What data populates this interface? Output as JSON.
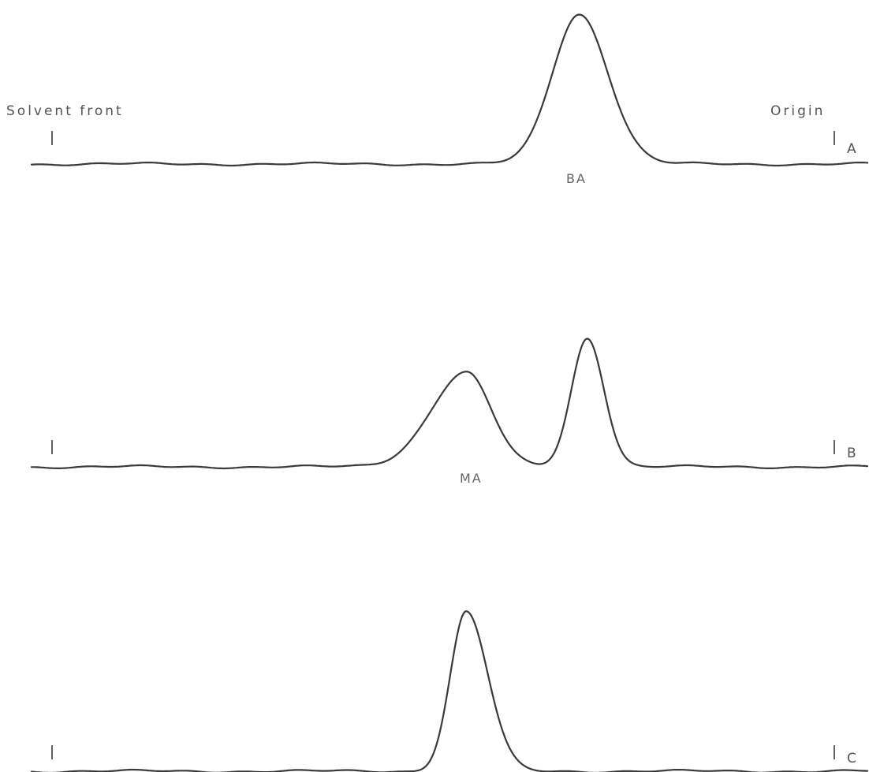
{
  "chart_data": {
    "type": "line",
    "title": "",
    "xlabel": "",
    "ylabel": "",
    "x_start_label": "Solvent front",
    "x_end_label": "Origin",
    "xlim": [
      0,
      100
    ],
    "ylim": [
      0,
      100
    ],
    "grid": false,
    "panels": [
      {
        "id": "A",
        "end_label": "A",
        "peak_labels": [
          "BA"
        ],
        "peaks": [
          {
            "x": 65.5,
            "height": 100,
            "width_left": 3.2,
            "width_right": 3.5
          }
        ]
      },
      {
        "id": "B",
        "end_label": "B",
        "peak_labels": [
          "MA"
        ],
        "peaks": [
          {
            "x": 52.0,
            "height": 63,
            "width_left": 4.2,
            "width_right": 3.0
          },
          {
            "x": 66.5,
            "height": 86,
            "width_left": 1.9,
            "width_right": 2.0
          }
        ]
      },
      {
        "id": "C",
        "end_label": "C",
        "peak_labels": [],
        "peaks": [
          {
            "x": 52.0,
            "height": 100,
            "width_left": 1.9,
            "width_right": 2.6
          }
        ]
      }
    ]
  }
}
